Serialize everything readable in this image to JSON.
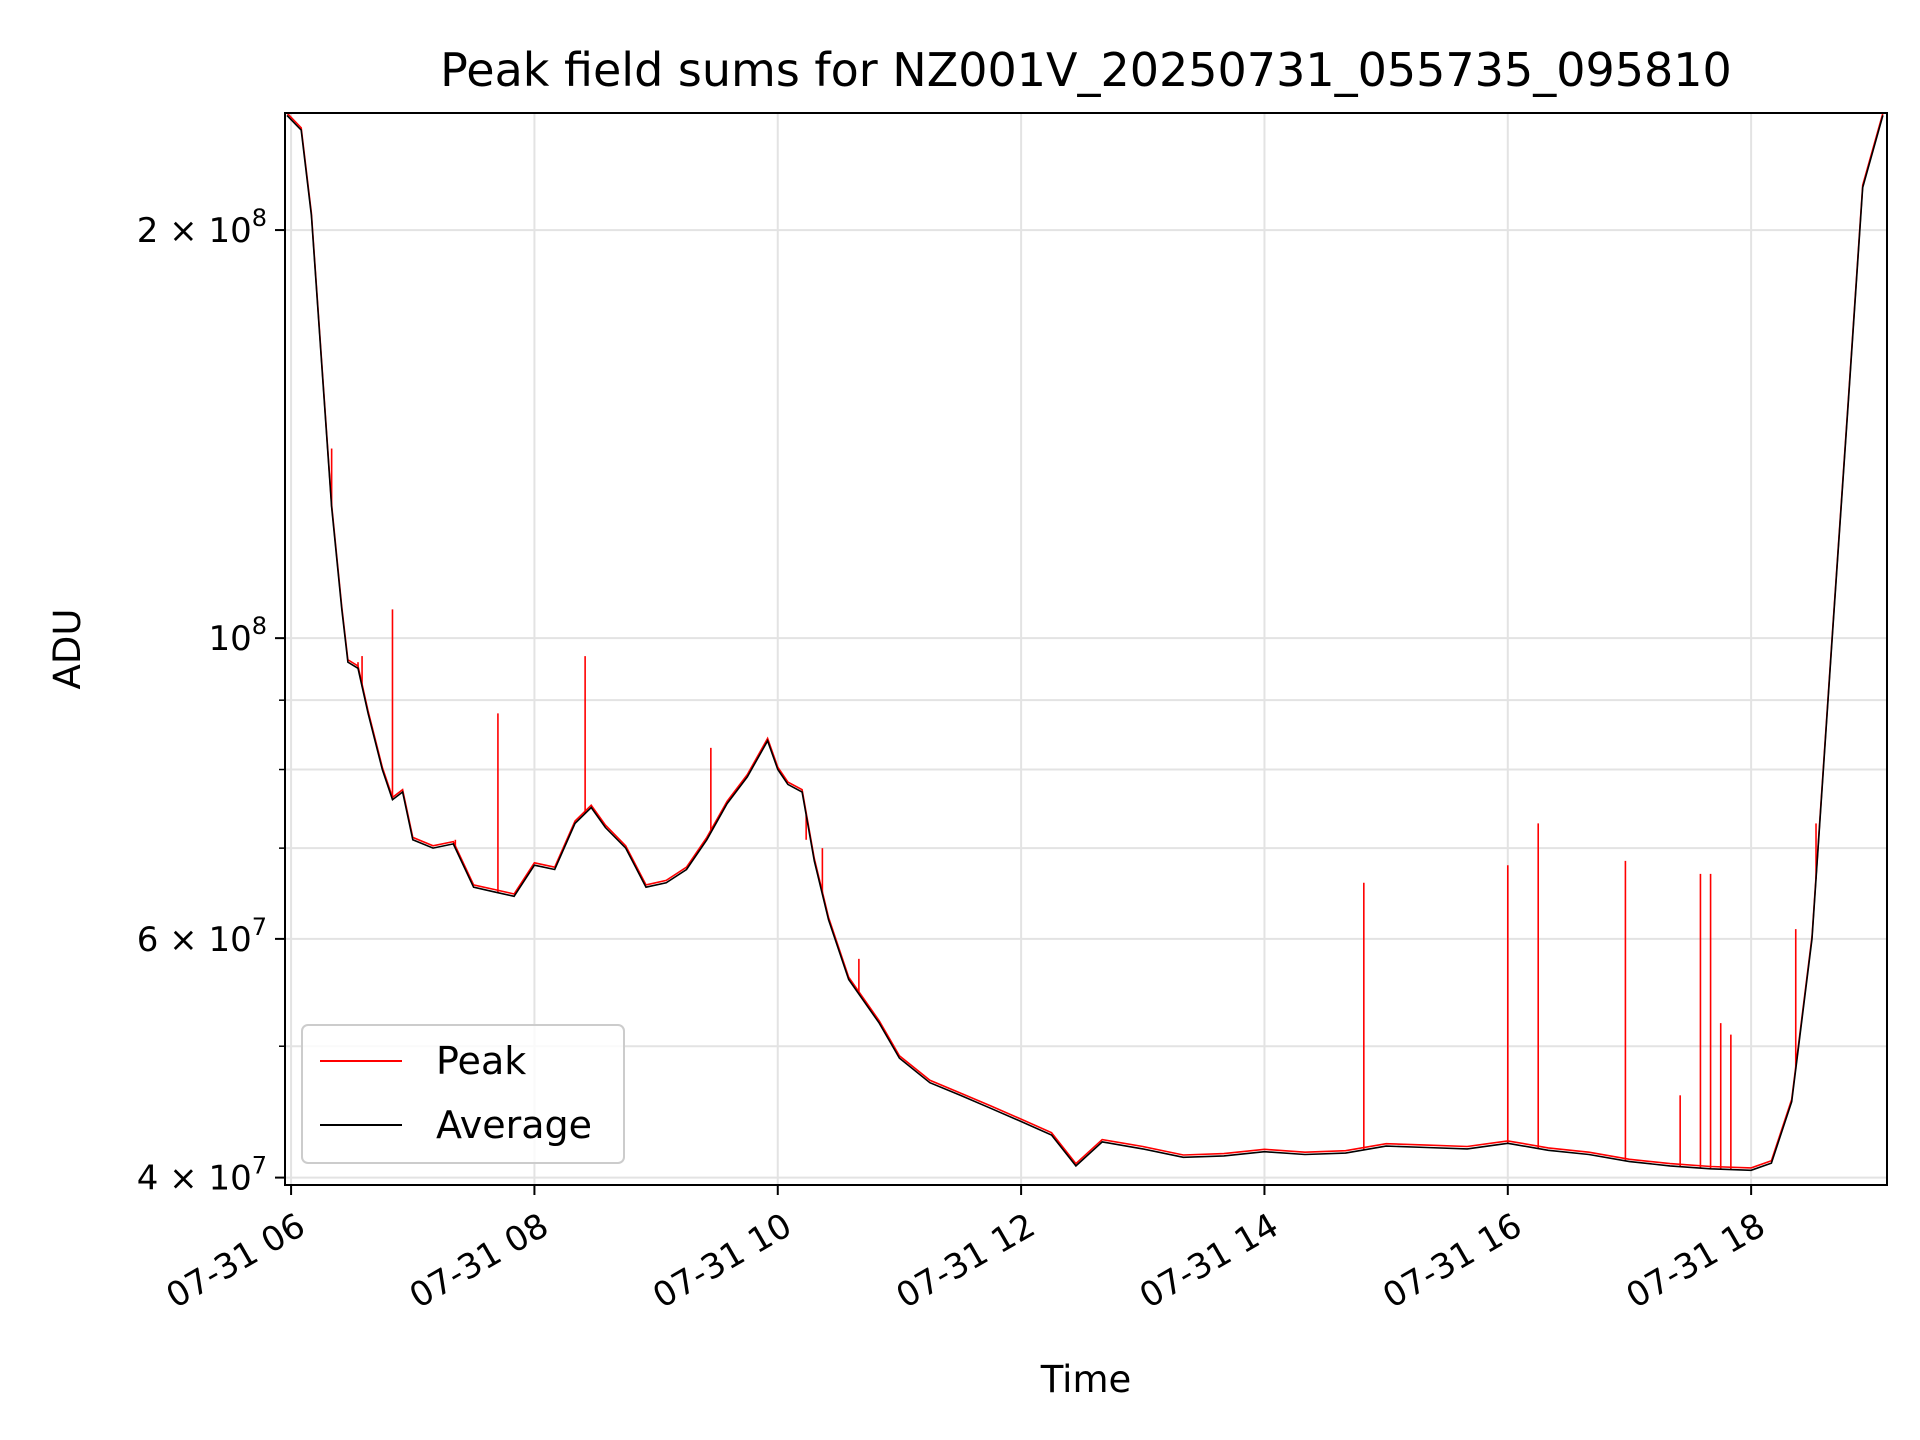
{
  "chart_data": {
    "type": "line",
    "title": "Peak field sums for NZ001V_20250731_055735_095810",
    "xlabel": "Time",
    "ylabel": "ADU",
    "yscale": "log",
    "xlim": [
      "2025-07-31 05:57",
      "2025-07-31 19:07"
    ],
    "ylim": [
      39500000,
      244000000
    ],
    "x_ticks": [
      "07-31 06",
      "07-31 08",
      "07-31 10",
      "07-31 12",
      "07-31 14",
      "07-31 16",
      "07-31 18"
    ],
    "y_tick_labels": [
      {
        "value": 40000000,
        "label": "4 × 10^7"
      },
      {
        "value": 60000000,
        "label": "6 × 10^7"
      },
      {
        "value": 100000000,
        "label": "10^8"
      },
      {
        "value": 200000000,
        "label": "2 × 10^8"
      }
    ],
    "y_minor_ticks": [
      50000000,
      70000000,
      80000000,
      90000000
    ],
    "grid": true,
    "legend_position": "lower-left",
    "series": [
      {
        "name": "Average",
        "color": "#000000",
        "points": [
          [
            "2025-07-31 05:58",
            243000000
          ],
          [
            "2025-07-31 06:05",
            237000000
          ],
          [
            "2025-07-31 06:10",
            205000000
          ],
          [
            "2025-07-31 06:15",
            160000000
          ],
          [
            "2025-07-31 06:20",
            125000000
          ],
          [
            "2025-07-31 06:25",
            105000000
          ],
          [
            "2025-07-31 06:28",
            96000000
          ],
          [
            "2025-07-31 06:33",
            95000000
          ],
          [
            "2025-07-31 06:38",
            88000000
          ],
          [
            "2025-07-31 06:45",
            80000000
          ],
          [
            "2025-07-31 06:50",
            76000000
          ],
          [
            "2025-07-31 06:55",
            77000000
          ],
          [
            "2025-07-31 07:00",
            71000000
          ],
          [
            "2025-07-31 07:10",
            70000000
          ],
          [
            "2025-07-31 07:20",
            70500000
          ],
          [
            "2025-07-31 07:30",
            65500000
          ],
          [
            "2025-07-31 07:40",
            65000000
          ],
          [
            "2025-07-31 07:50",
            64500000
          ],
          [
            "2025-07-31 08:00",
            68000000
          ],
          [
            "2025-07-31 08:10",
            67500000
          ],
          [
            "2025-07-31 08:20",
            73000000
          ],
          [
            "2025-07-31 08:28",
            75000000
          ],
          [
            "2025-07-31 08:35",
            72500000
          ],
          [
            "2025-07-31 08:45",
            70000000
          ],
          [
            "2025-07-31 08:55",
            65500000
          ],
          [
            "2025-07-31 09:05",
            66000000
          ],
          [
            "2025-07-31 09:15",
            67500000
          ],
          [
            "2025-07-31 09:25",
            71000000
          ],
          [
            "2025-07-31 09:35",
            75500000
          ],
          [
            "2025-07-31 09:45",
            79000000
          ],
          [
            "2025-07-31 09:55",
            84000000
          ],
          [
            "2025-07-31 10:00",
            80000000
          ],
          [
            "2025-07-31 10:05",
            78000000
          ],
          [
            "2025-07-31 10:12",
            77000000
          ],
          [
            "2025-07-31 10:18",
            68500000
          ],
          [
            "2025-07-31 10:25",
            62000000
          ],
          [
            "2025-07-31 10:35",
            56000000
          ],
          [
            "2025-07-31 10:50",
            52000000
          ],
          [
            "2025-07-31 11:00",
            49000000
          ],
          [
            "2025-07-31 11:15",
            47000000
          ],
          [
            "2025-07-31 11:30",
            46000000
          ],
          [
            "2025-07-31 11:45",
            45000000
          ],
          [
            "2025-07-31 12:00",
            44000000
          ],
          [
            "2025-07-31 12:15",
            43000000
          ],
          [
            "2025-07-31 12:27",
            40800000
          ],
          [
            "2025-07-31 12:40",
            42500000
          ],
          [
            "2025-07-31 13:00",
            42000000
          ],
          [
            "2025-07-31 13:20",
            41400000
          ],
          [
            "2025-07-31 13:40",
            41500000
          ],
          [
            "2025-07-31 14:00",
            41800000
          ],
          [
            "2025-07-31 14:20",
            41600000
          ],
          [
            "2025-07-31 14:40",
            41700000
          ],
          [
            "2025-07-31 15:00",
            42200000
          ],
          [
            "2025-07-31 15:20",
            42100000
          ],
          [
            "2025-07-31 15:40",
            42000000
          ],
          [
            "2025-07-31 16:00",
            42400000
          ],
          [
            "2025-07-31 16:20",
            41900000
          ],
          [
            "2025-07-31 16:40",
            41600000
          ],
          [
            "2025-07-31 17:00",
            41100000
          ],
          [
            "2025-07-31 17:20",
            40800000
          ],
          [
            "2025-07-31 17:40",
            40600000
          ],
          [
            "2025-07-31 18:00",
            40500000
          ],
          [
            "2025-07-31 18:10",
            41000000
          ],
          [
            "2025-07-31 18:20",
            45500000
          ],
          [
            "2025-07-31 18:30",
            60000000
          ],
          [
            "2025-07-31 18:40",
            100000000
          ],
          [
            "2025-07-31 18:48",
            150000000
          ],
          [
            "2025-07-31 18:55",
            215000000
          ],
          [
            "2025-07-31 19:05",
            243000000
          ]
        ]
      },
      {
        "name": "Peak",
        "color": "#ff0000",
        "spikes": [
          [
            "2025-07-31 06:20",
            138000000
          ],
          [
            "2025-07-31 06:33",
            96000000
          ],
          [
            "2025-07-31 06:35",
            97000000
          ],
          [
            "2025-07-31 06:50",
            105000000
          ],
          [
            "2025-07-31 07:21",
            71000000
          ],
          [
            "2025-07-31 07:42",
            88000000
          ],
          [
            "2025-07-31 08:25",
            97000000
          ],
          [
            "2025-07-31 09:27",
            83000000
          ],
          [
            "2025-07-31 10:14",
            71000000
          ],
          [
            "2025-07-31 10:22",
            70000000
          ],
          [
            "2025-07-31 10:40",
            58000000
          ],
          [
            "2025-07-31 14:49",
            66000000
          ],
          [
            "2025-07-31 16:00",
            68000000
          ],
          [
            "2025-07-31 16:15",
            73000000
          ],
          [
            "2025-07-31 16:58",
            68500000
          ],
          [
            "2025-07-31 17:25",
            46000000
          ],
          [
            "2025-07-31 17:35",
            67000000
          ],
          [
            "2025-07-31 17:40",
            67000000
          ],
          [
            "2025-07-31 17:45",
            52000000
          ],
          [
            "2025-07-31 17:50",
            51000000
          ],
          [
            "2025-07-31 18:22",
            61000000
          ],
          [
            "2025-07-31 18:32",
            73000000
          ]
        ]
      }
    ]
  }
}
